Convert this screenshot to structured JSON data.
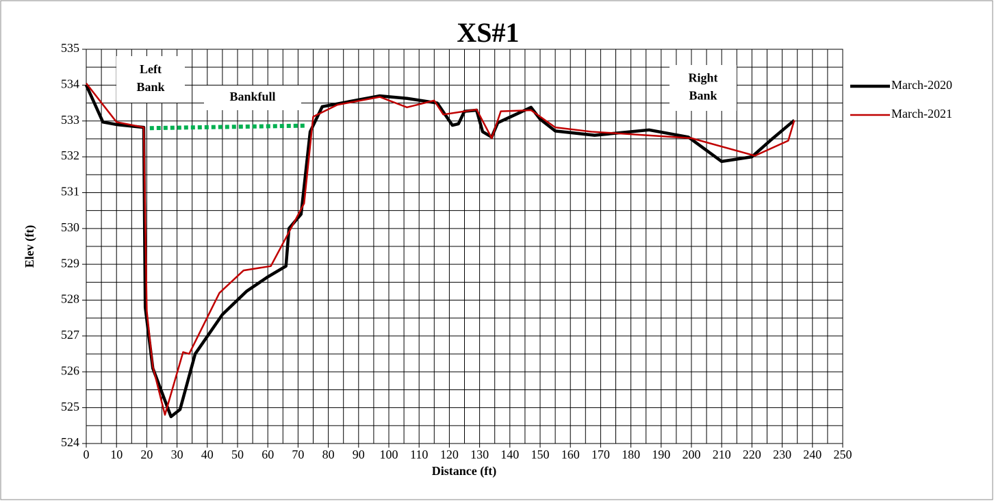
{
  "chart_data": {
    "type": "line",
    "title": "XS#1",
    "xlabel": "Distance (ft)",
    "ylabel": "Elev (ft)",
    "xlim": [
      0,
      250
    ],
    "ylim": [
      524,
      535
    ],
    "xticks": [
      0,
      10,
      20,
      30,
      40,
      50,
      60,
      70,
      80,
      90,
      100,
      110,
      120,
      130,
      140,
      150,
      160,
      170,
      180,
      190,
      200,
      210,
      220,
      230,
      240,
      250
    ],
    "yticks": [
      524,
      525,
      526,
      527,
      528,
      529,
      530,
      531,
      532,
      533,
      534,
      535
    ],
    "xminorticks": [
      5,
      15,
      25,
      35,
      45,
      55,
      65,
      75,
      85,
      95,
      105,
      115,
      125,
      135,
      145,
      155,
      165,
      175,
      185,
      195,
      205,
      215,
      225,
      235,
      245
    ],
    "yminorticks": [
      524.5,
      525.5,
      526.5,
      527.5,
      528.5,
      529.5,
      530.5,
      531.5,
      532.5,
      533.5,
      534.5
    ],
    "grid": true,
    "legend": "right",
    "series": [
      {
        "name": "March-2020",
        "color": "#000000",
        "x": [
          0,
          5.5,
          10,
          19,
          19.5,
          22,
          28,
          31,
          36,
          45,
          53,
          60,
          66,
          67,
          71,
          74,
          78,
          97,
          106,
          116,
          121,
          123,
          125,
          129,
          131,
          134,
          136,
          147,
          150,
          155,
          168,
          186,
          199,
          210,
          220,
          226,
          234
        ],
        "values": [
          534.0,
          532.97,
          532.9,
          532.82,
          527.8,
          526.1,
          524.75,
          524.95,
          526.5,
          527.6,
          528.25,
          528.65,
          528.95,
          530.0,
          530.4,
          532.7,
          533.4,
          533.7,
          533.63,
          533.5,
          532.88,
          532.92,
          533.27,
          533.3,
          532.7,
          532.55,
          532.95,
          533.38,
          533.05,
          532.72,
          532.6,
          532.75,
          532.55,
          531.87,
          532.0,
          532.45,
          533.02
        ]
      },
      {
        "name": "March-2021",
        "color": "#c00000",
        "x": [
          0,
          10,
          19,
          20,
          22,
          26,
          32,
          34,
          44,
          52,
          61,
          67,
          72,
          75,
          83,
          97,
          106,
          115,
          118,
          129,
          134,
          137,
          147,
          155,
          167,
          200,
          221,
          232,
          234
        ],
        "values": [
          534.05,
          532.97,
          532.82,
          527.7,
          526.15,
          524.8,
          526.55,
          526.5,
          528.2,
          528.83,
          528.95,
          529.9,
          530.7,
          533.12,
          533.45,
          533.67,
          533.38,
          533.57,
          533.18,
          533.32,
          532.52,
          533.27,
          533.3,
          532.82,
          532.7,
          532.52,
          532.03,
          532.45,
          533.02
        ]
      }
    ],
    "bankfull_line": {
      "x": [
        21,
        73
      ],
      "values": [
        532.8,
        532.87
      ],
      "color": "#00b050"
    },
    "annotations": {
      "left_bank": [
        "Left",
        "Bank"
      ],
      "bankfull": [
        "Bankfull"
      ],
      "right_bank": [
        "Right",
        "Bank"
      ]
    }
  }
}
